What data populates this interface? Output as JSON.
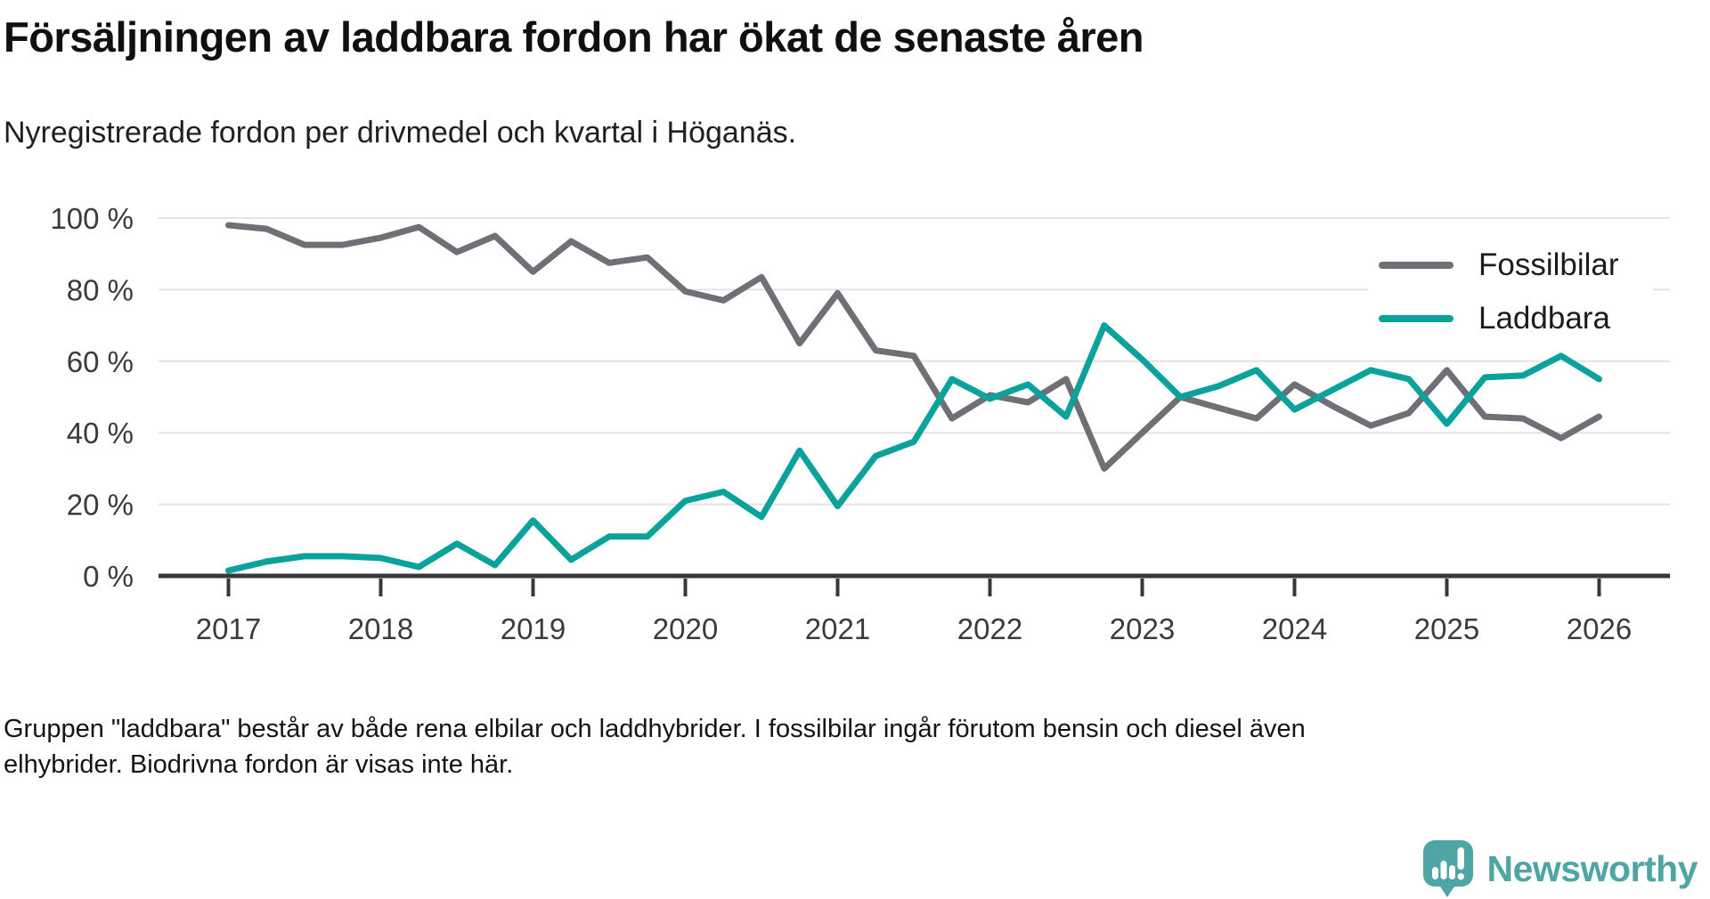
{
  "header": {
    "title": "Försäljningen av laddbara fordon har ökat de senaste åren",
    "subtitle": "Nyregistrerade fordon per drivmedel och kvartal i Höganäs."
  },
  "footnote": {
    "line1": "Gruppen \"laddbara\" består av både rena elbilar och laddhybrider. I fossilbilar ingår förutom bensin och diesel även",
    "line2": "elhybrider. Biodrivna fordon är visas inte här."
  },
  "branding": {
    "logo_text": "Newsworthy",
    "logo_color": "#4ea5a4",
    "logo_icon": "bar-chart-speech-bubble-icon"
  },
  "chart_data": {
    "type": "line",
    "title": "Försäljningen av laddbara fordon har ökat de senaste åren",
    "subtitle": "Nyregistrerade fordon per drivmedel och kvartal i Höganäs.",
    "unit": "%",
    "grid": true,
    "legend_position": "top-right",
    "ylim": [
      0,
      100
    ],
    "y_tick_labels": [
      "100 %",
      "80 %",
      "60 %",
      "40 %",
      "20 %",
      "0 %"
    ],
    "y_tick_values": [
      100,
      80,
      60,
      40,
      20,
      0
    ],
    "x_tick_labels": [
      "2017",
      "2018",
      "2019",
      "2020",
      "2021",
      "2022",
      "2023",
      "2024",
      "2025",
      "2026"
    ],
    "x": [
      "2017 Q1",
      "2017 Q2",
      "2017 Q3",
      "2017 Q4",
      "2018 Q1",
      "2018 Q2",
      "2018 Q3",
      "2018 Q4",
      "2019 Q1",
      "2019 Q2",
      "2019 Q3",
      "2019 Q4",
      "2020 Q1",
      "2020 Q2",
      "2020 Q3",
      "2020 Q4",
      "2021 Q1",
      "2021 Q2",
      "2021 Q3",
      "2021 Q4",
      "2022 Q1",
      "2022 Q2",
      "2022 Q3",
      "2022 Q4",
      "2023 Q1",
      "2023 Q2",
      "2023 Q3",
      "2023 Q4",
      "2024 Q1",
      "2024 Q2",
      "2024 Q3",
      "2024 Q4",
      "2025 Q1",
      "2025 Q2",
      "2025 Q3",
      "2025 Q4",
      "2026 Q1"
    ],
    "series": [
      {
        "name": "Fossilbilar",
        "color": "#6f6f76",
        "values": [
          98,
          97,
          92.5,
          92.5,
          94.5,
          97.5,
          90.5,
          95,
          85,
          93.5,
          87.5,
          89,
          79.5,
          77,
          83.5,
          65,
          79,
          63,
          61.5,
          44,
          50.5,
          48.5,
          55,
          30,
          40,
          50,
          47,
          44,
          53.5,
          47.5,
          42,
          45.5,
          57.5,
          44.5,
          44,
          38.5,
          44.5
        ]
      },
      {
        "name": "Laddbara",
        "color": "#0aa29a",
        "values": [
          1.5,
          4,
          5.5,
          5.5,
          5,
          2.5,
          9,
          3,
          15.5,
          4.5,
          11,
          11,
          21,
          23.5,
          16.5,
          35,
          19.5,
          33.5,
          37.5,
          55,
          49.5,
          53.5,
          44.5,
          70,
          60.5,
          50,
          53,
          57.5,
          46.5,
          52,
          57.5,
          55,
          42.5,
          55.5,
          56,
          61.5,
          55
        ]
      }
    ],
    "style": {
      "gridline_color": "#e3e3e3",
      "axis_color": "#38383c",
      "tick_label_color": "#3b3b3b"
    }
  }
}
